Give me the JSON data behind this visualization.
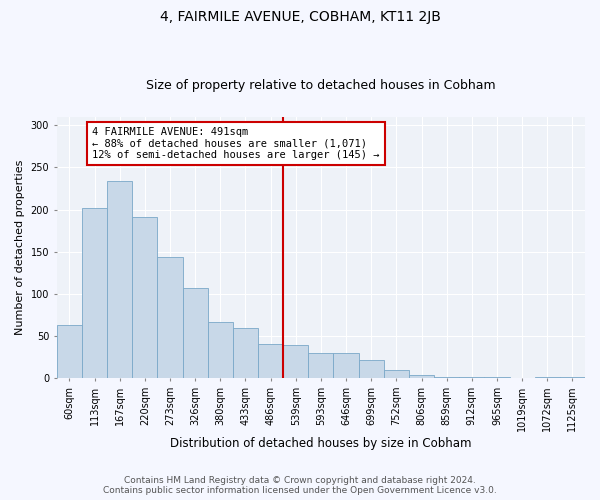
{
  "title": "4, FAIRMILE AVENUE, COBHAM, KT11 2JB",
  "subtitle": "Size of property relative to detached houses in Cobham",
  "xlabel": "Distribution of detached houses by size in Cobham",
  "ylabel": "Number of detached properties",
  "categories": [
    "60sqm",
    "113sqm",
    "167sqm",
    "220sqm",
    "273sqm",
    "326sqm",
    "380sqm",
    "433sqm",
    "486sqm",
    "539sqm",
    "593sqm",
    "646sqm",
    "699sqm",
    "752sqm",
    "806sqm",
    "859sqm",
    "912sqm",
    "965sqm",
    "1019sqm",
    "1072sqm",
    "1125sqm"
  ],
  "values": [
    63,
    202,
    234,
    191,
    144,
    107,
    67,
    60,
    41,
    40,
    30,
    30,
    22,
    10,
    4,
    2,
    2,
    1,
    0,
    1,
    1
  ],
  "bar_color": "#c8d8e8",
  "bar_edge_color": "#7aa8c8",
  "background_color": "#eef2f8",
  "grid_color": "#ffffff",
  "fig_background": "#f5f7ff",
  "vline_color": "#cc0000",
  "annotation_lines": [
    "4 FAIRMILE AVENUE: 491sqm",
    "← 88% of detached houses are smaller (1,071)",
    "12% of semi-detached houses are larger (145) →"
  ],
  "footer_line1": "Contains HM Land Registry data © Crown copyright and database right 2024.",
  "footer_line2": "Contains public sector information licensed under the Open Government Licence v3.0.",
  "ylim": [
    0,
    310
  ],
  "yticks": [
    0,
    50,
    100,
    150,
    200,
    250,
    300
  ],
  "title_fontsize": 10,
  "subtitle_fontsize": 9,
  "xlabel_fontsize": 8.5,
  "ylabel_fontsize": 8,
  "tick_fontsize": 7,
  "annotation_fontsize": 7.5,
  "footer_fontsize": 6.5
}
